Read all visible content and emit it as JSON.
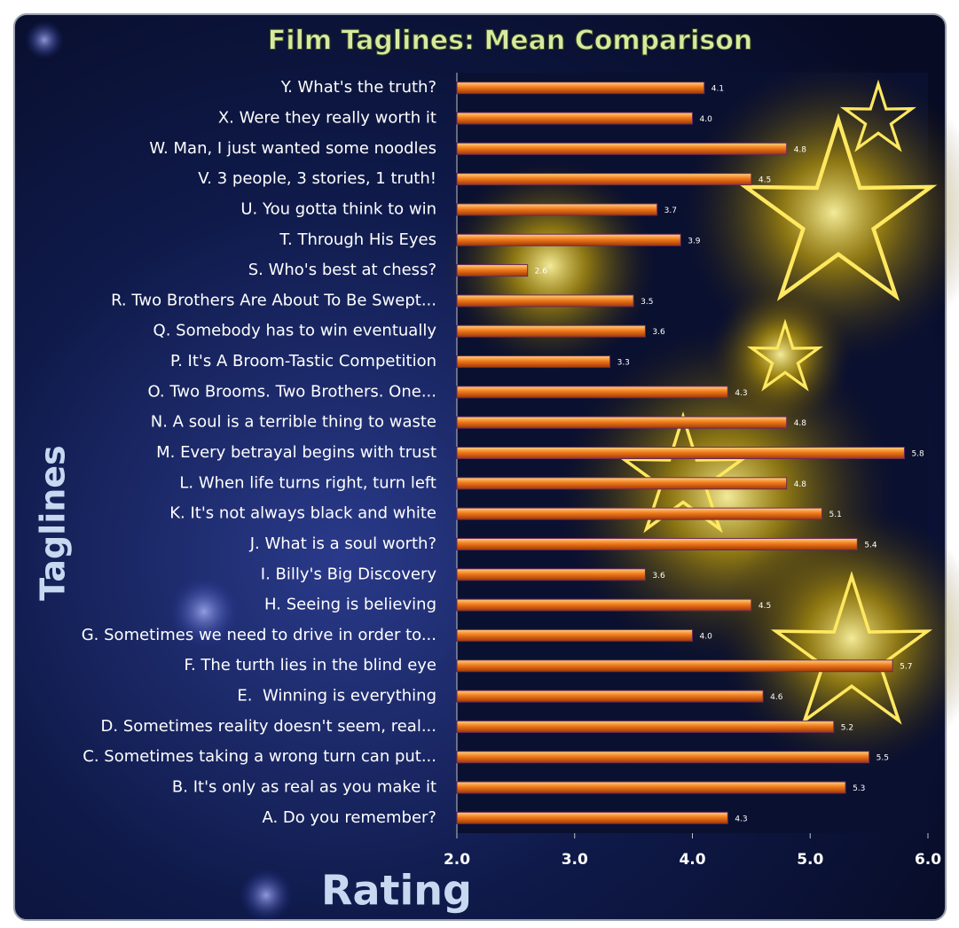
{
  "chart_data": {
    "type": "hbar",
    "title": "Film Taglines: Mean Comparison",
    "x_label": "Rating",
    "y_label": "Taglines",
    "categories": [
      "A. Do you remember?",
      "B. It's only as real as you make it",
      "C. Sometimes taking a wrong turn can put...",
      "D. Sometimes reality doesn't seem, real...",
      "E.  Winning is everything",
      "F. The turth lies in the blind eye",
      "G. Sometimes we need to drive in order to...",
      "H. Seeing is believing",
      "I. Billy's Big Discovery",
      "J. What is a soul worth?",
      "K. It's not always black and white",
      "L. When life turns right, turn left",
      "M. Every betrayal begins with trust",
      "N. A soul is a terrible thing to waste",
      "O. Two Brooms. Two Brothers. One...",
      "P. It's A Broom-Tastic Competition",
      "Q. Somebody has to win eventually",
      "R. Two Brothers Are About To Be Swept...",
      "S. Who's best at chess?",
      "T. Through His Eyes",
      "U. You gotta think to win",
      "V. 3 people, 3 stories, 1 truth!",
      "W. Man, I just wanted some noodles",
      "X. Were they really worth it",
      "Y. What's the truth?"
    ],
    "values": [
      4.3,
      5.3,
      5.5,
      5.2,
      4.6,
      5.7,
      4.0,
      4.5,
      3.6,
      5.4,
      5.1,
      4.8,
      5.8,
      4.8,
      4.3,
      3.3,
      3.6,
      3.5,
      2.6,
      3.9,
      3.7,
      4.5,
      4.8,
      4.0,
      4.1
    ],
    "value_labels": [
      "4.3",
      "5.3",
      "5.5",
      "5.2",
      "4.6",
      "5.7",
      "4.0",
      "4.5",
      "3.6",
      "5.4",
      "5.1",
      "4.8",
      "5.8",
      "4.8",
      "4.3",
      "3.3",
      "3.6",
      "3.5",
      "2.6",
      "3.9",
      "3.7",
      "4.5",
      "4.8",
      "4.0",
      "4.1"
    ],
    "color": "#f07a1a",
    "xlim": [
      2,
      6
    ],
    "xticks": [
      {
        "value": 2,
        "label": "2.0"
      },
      {
        "value": 3,
        "label": "3.0"
      },
      {
        "value": 4,
        "label": "4.0"
      },
      {
        "value": 5,
        "label": "5.0"
      },
      {
        "value": 6,
        "label": "6.0"
      }
    ]
  }
}
